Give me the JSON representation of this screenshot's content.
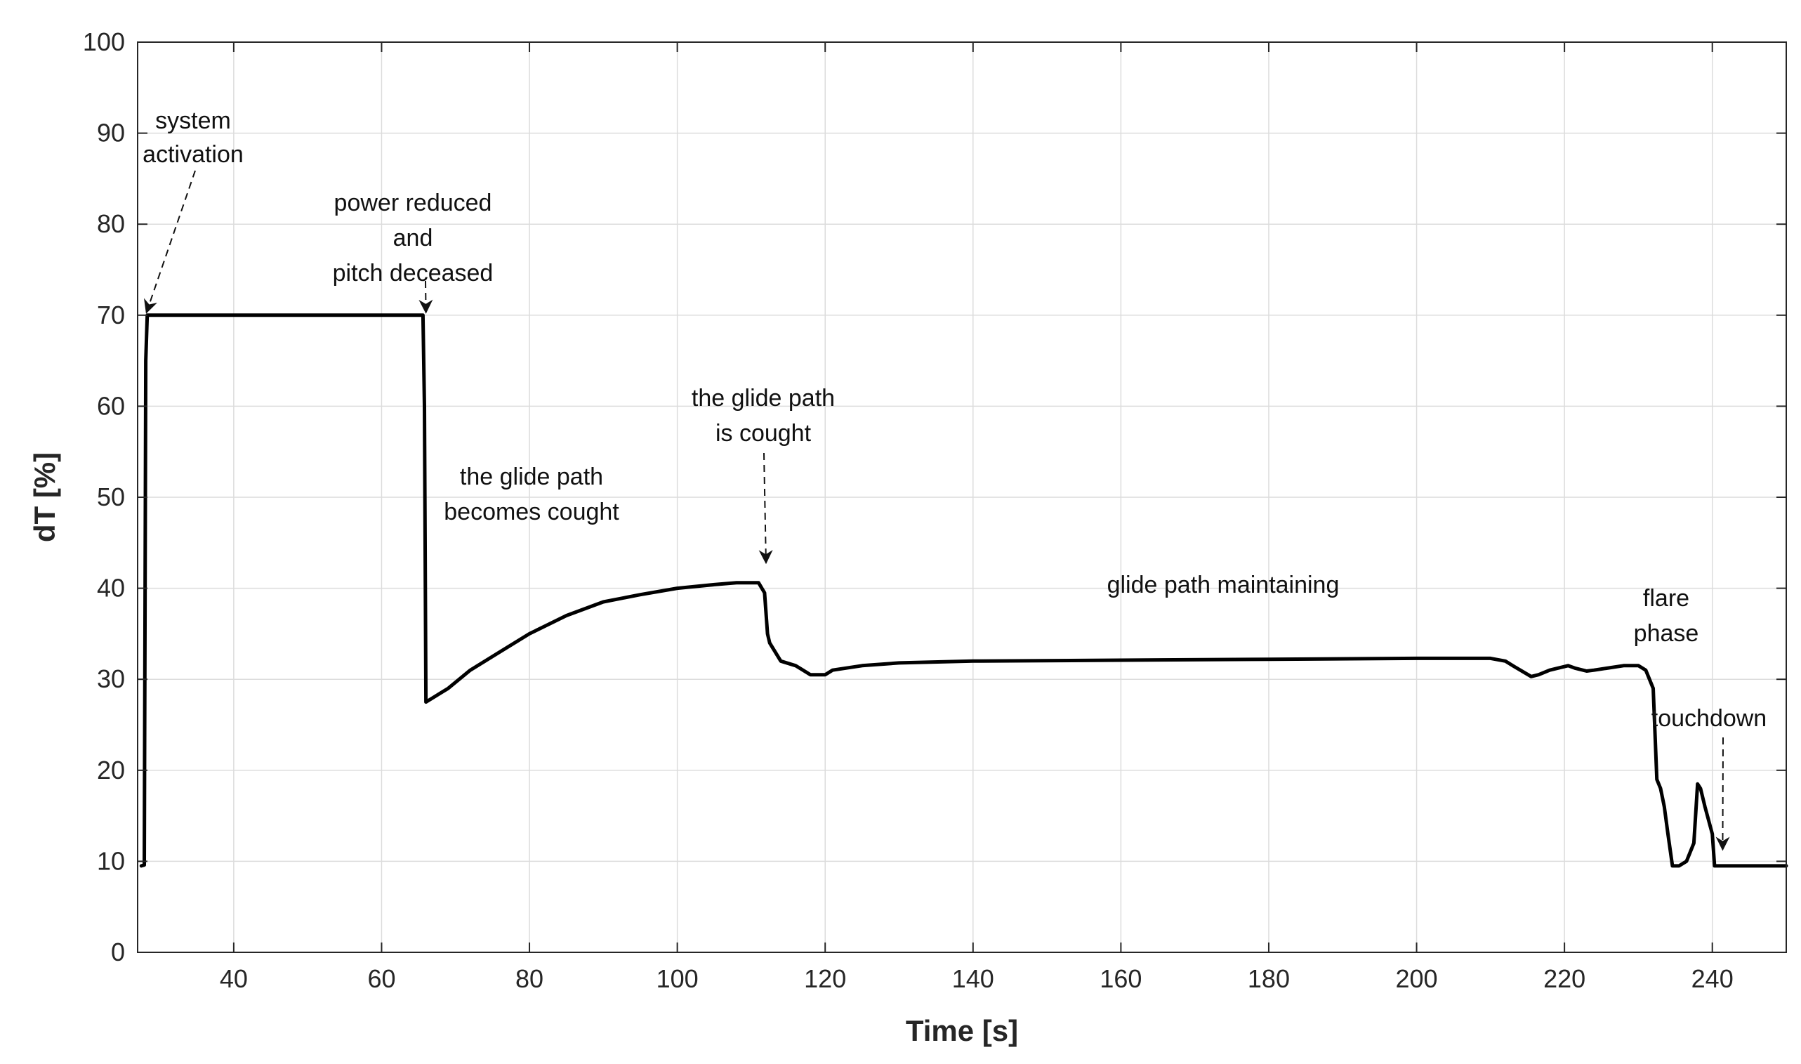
{
  "chart_data": {
    "type": "line",
    "title": "",
    "xlabel": "Time [s]",
    "ylabel": "dT [%]",
    "xlim": [
      27,
      250
    ],
    "ylim": [
      0,
      100
    ],
    "grid": true,
    "x_ticks": [
      40,
      60,
      80,
      100,
      120,
      140,
      160,
      180,
      200,
      220,
      240
    ],
    "y_ticks": [
      0,
      10,
      20,
      30,
      40,
      50,
      60,
      70,
      80,
      90,
      100
    ],
    "series": [
      {
        "name": "dT",
        "x": [
          27.5,
          27.9,
          28.1,
          28.3,
          40,
          55,
          65.6,
          65.8,
          66,
          67,
          68,
          69,
          72,
          76,
          80,
          85,
          90,
          95,
          100,
          105,
          108,
          111,
          111.8,
          112.2,
          112.5,
          114,
          116,
          118,
          120,
          121,
          125,
          130,
          140,
          160,
          180,
          200,
          210,
          212,
          213,
          215.5,
          216.5,
          218,
          220.5,
          221.5,
          223,
          224,
          228,
          230,
          231,
          232,
          232.5,
          233,
          233.5,
          234,
          234.6,
          235.5,
          236.5,
          237.5,
          238,
          238.4,
          239,
          240,
          240.3,
          241,
          245,
          250
        ],
        "y": [
          9.5,
          9.6,
          65,
          70,
          70,
          70,
          70,
          60,
          27.5,
          28,
          28.5,
          29,
          31,
          33,
          35,
          37,
          38.5,
          39.3,
          40,
          40.4,
          40.6,
          40.6,
          39.5,
          35,
          34,
          32,
          31.5,
          30.5,
          30.5,
          31,
          31.5,
          31.8,
          32,
          32.1,
          32.2,
          32.3,
          32.3,
          32,
          31.5,
          30.3,
          30.5,
          31,
          31.5,
          31.2,
          30.9,
          31,
          31.5,
          31.5,
          31,
          29,
          19,
          18,
          16,
          13,
          9.5,
          9.5,
          10,
          12,
          18.5,
          18,
          16,
          13,
          9.5,
          9.5,
          9.5,
          9.5
        ]
      }
    ],
    "annotations": [
      {
        "lines": [
          "system",
          "activation"
        ],
        "target": [
          28.2,
          70
        ]
      },
      {
        "lines": [
          "power reduced",
          "and",
          "pitch deceased"
        ],
        "target": [
          66,
          70
        ]
      },
      {
        "lines": [
          "the glide path",
          "becomes cought"
        ]
      },
      {
        "lines": [
          "the glide path",
          "is cought"
        ],
        "target": [
          112,
          42.5
        ]
      },
      {
        "lines": [
          "glide path maintaining"
        ]
      },
      {
        "lines": [
          "flare",
          "phase"
        ]
      },
      {
        "lines": [
          "touchdown"
        ],
        "target": [
          241.4,
          11
        ]
      }
    ],
    "colors": {
      "line": "#000000",
      "grid": "#dcdcdc",
      "axis": "#262626",
      "text": "#262626"
    }
  }
}
